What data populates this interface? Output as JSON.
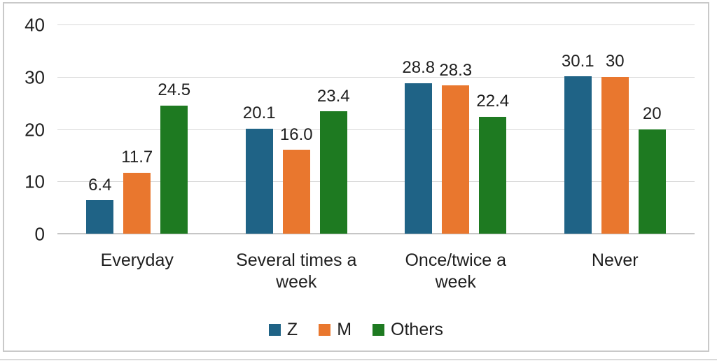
{
  "chart_data": {
    "type": "bar",
    "title": "",
    "xlabel": "",
    "ylabel": "",
    "categories": [
      "Everyday",
      "Several times a week",
      "Once/twice a week",
      "Never"
    ],
    "series": [
      {
        "name": "Z",
        "color": "#1f6386",
        "values": [
          6.4,
          20.1,
          28.8,
          30.1
        ],
        "value_labels": [
          "6.4",
          "20.1",
          "28.8",
          "30.1"
        ]
      },
      {
        "name": "M",
        "color": "#e9772e",
        "values": [
          11.7,
          16.0,
          28.3,
          30
        ],
        "value_labels": [
          "11.7",
          "16.0",
          "28.3",
          "30"
        ]
      },
      {
        "name": "Others",
        "color": "#1e7a21",
        "values": [
          24.5,
          23.4,
          22.4,
          20
        ],
        "value_labels": [
          "24.5",
          "23.4",
          "22.4",
          "20"
        ]
      }
    ],
    "ylim": [
      0,
      40
    ],
    "yticks": [
      0,
      10,
      20,
      30,
      40
    ],
    "ytick_labels": [
      "0",
      "10",
      "20",
      "30",
      "40"
    ],
    "grid": true,
    "legend_position": "bottom",
    "colors": {
      "gridline": "#d9d9d9",
      "baseline": "#c6c6c6",
      "text": "#1f1f1f",
      "frame_border": "#c9c9c9"
    }
  }
}
